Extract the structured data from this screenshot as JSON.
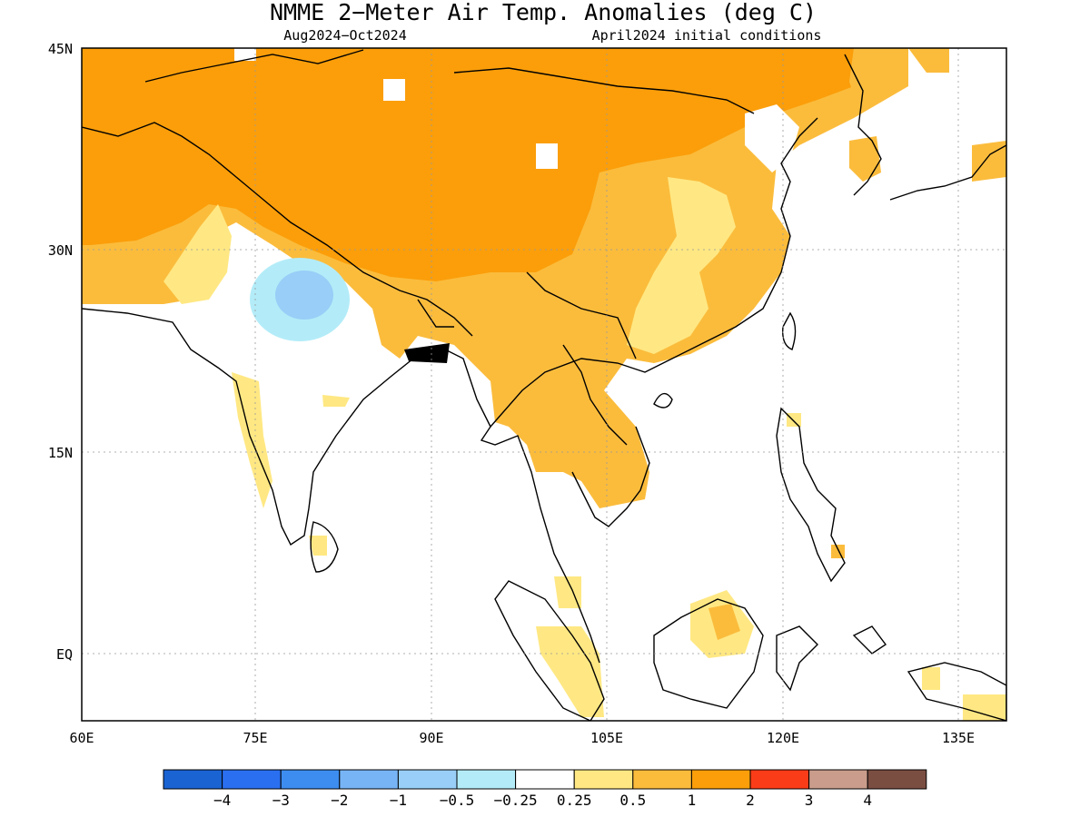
{
  "map": {
    "title": "NMME 2−Meter Air Temp. Anomalies (deg C)",
    "period": "Aug2024−Oct2024",
    "initial_conditions": "April2024 initial conditions",
    "lon_ticks": [
      "60E",
      "75E",
      "90E",
      "105E",
      "120E",
      "135E"
    ],
    "lat_ticks": [
      "45N",
      "30N",
      "15N",
      "EQ"
    ],
    "lon_range": [
      60,
      140
    ],
    "lat_range": [
      -5,
      45
    ],
    "gridlines": true
  },
  "colorbar": {
    "colors": [
      "#1a63d3",
      "#2a6ff0",
      "#3d8df0",
      "#77b4f5",
      "#98cef7",
      "#b3ecf8",
      "#ffffff",
      "#ffe883",
      "#fbbc3c",
      "#fb9e0a",
      "#fb3c18",
      "#c99c8b",
      "#7b4e42"
    ],
    "labels": [
      "−4",
      "−3",
      "−2",
      "−1",
      "−0.5",
      "−0.25",
      "0.25",
      "0.5",
      "1",
      "2",
      "3",
      "4"
    ]
  }
}
